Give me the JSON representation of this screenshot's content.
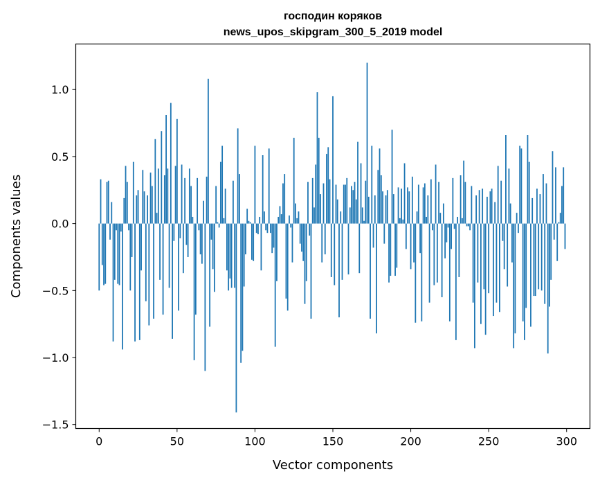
{
  "chart_data": {
    "type": "bar",
    "title": "господин коряков",
    "subtitle": "news_upos_skipgram_300_5_2019 model",
    "xlabel": "Vector components",
    "ylabel": "Components values",
    "xlim": [
      -15,
      315
    ],
    "ylim": [
      -1.53,
      1.34
    ],
    "x_ticks": [
      0,
      50,
      100,
      150,
      200,
      250,
      300
    ],
    "x_tick_labels": [
      "0",
      "50",
      "100",
      "150",
      "200",
      "250",
      "300"
    ],
    "y_ticks": [
      -1.5,
      -1.0,
      -0.5,
      0.0,
      0.5,
      1.0
    ],
    "y_tick_labels": [
      "−1.5",
      "−1.0",
      "−0.5",
      "0.0",
      "0.5",
      "1.0"
    ],
    "grid": false,
    "bar_color": "#1f77b4",
    "values": [
      -0.5,
      0.33,
      -0.31,
      -0.46,
      -0.45,
      0.31,
      0.32,
      -0.12,
      0.16,
      -0.88,
      -0.42,
      -0.05,
      -0.45,
      -0.46,
      -0.06,
      -0.94,
      0.19,
      0.43,
      0.31,
      -0.05,
      -0.5,
      -0.25,
      0.46,
      -0.88,
      0.21,
      0.25,
      -0.87,
      -0.35,
      0.4,
      0.24,
      -0.58,
      0.21,
      -0.76,
      0.38,
      0.28,
      -0.71,
      0.63,
      0.08,
      0.41,
      -0.42,
      0.69,
      -0.68,
      0.36,
      0.81,
      0.41,
      -0.48,
      0.9,
      -0.86,
      -0.13,
      0.43,
      0.78,
      -0.65,
      -0.11,
      0.44,
      -0.37,
      0.34,
      -0.16,
      -0.25,
      0.41,
      0.28,
      0.05,
      -1.02,
      -0.68,
      0.34,
      -0.05,
      -0.23,
      -0.3,
      0.17,
      -1.1,
      0.35,
      1.08,
      -0.77,
      -0.12,
      -0.34,
      -0.51,
      0.28,
      0.01,
      -0.03,
      0.46,
      0.58,
      0.04,
      0.26,
      -0.35,
      -0.5,
      -0.41,
      -0.48,
      0.32,
      -0.48,
      -1.41,
      0.71,
      0.37,
      -1.04,
      -0.95,
      -0.47,
      -0.23,
      0.11,
      0.02,
      0.01,
      -0.27,
      -0.28,
      0.58,
      -0.07,
      -0.08,
      0.05,
      -0.35,
      0.51,
      0.09,
      -0.05,
      -0.07,
      0.56,
      -0.07,
      -0.22,
      -0.18,
      -0.92,
      -0.43,
      0.05,
      0.13,
      0.07,
      0.3,
      0.37,
      -0.56,
      -0.65,
      0.06,
      -0.03,
      -0.29,
      0.64,
      0.15,
      0.04,
      0.09,
      -0.15,
      -0.21,
      -0.28,
      -0.6,
      -0.43,
      0.31,
      -0.09,
      -0.71,
      0.34,
      0.12,
      0.44,
      0.98,
      0.64,
      0.22,
      -0.29,
      0.3,
      -0.23,
      0.52,
      0.57,
      0.33,
      -0.4,
      0.95,
      -0.46,
      0.29,
      0.18,
      -0.7,
      0.09,
      -0.42,
      0.29,
      0.29,
      0.34,
      -0.38,
      0.12,
      0.28,
      0.25,
      0.31,
      0.18,
      0.61,
      -0.37,
      0.45,
      0.12,
      0.02,
      0.32,
      1.2,
      0.2,
      -0.71,
      0.58,
      -0.18,
      0.21,
      -0.82,
      0.4,
      0.56,
      0.36,
      0.24,
      -0.15,
      0.21,
      0.25,
      -0.44,
      -0.39,
      0.7,
      0.22,
      -0.39,
      -0.33,
      0.27,
      0.04,
      0.26,
      0.03,
      0.45,
      -0.19,
      0.27,
      0.24,
      -0.34,
      0.35,
      -0.29,
      -0.74,
      0.09,
      0.29,
      -0.22,
      -0.73,
      0.27,
      0.3,
      0.05,
      0.21,
      -0.59,
      0.33,
      -0.05,
      -0.46,
      0.44,
      -0.44,
      0.31,
      0.08,
      -0.55,
      0.15,
      -0.26,
      -0.14,
      -0.03,
      -0.73,
      -0.19,
      0.34,
      -0.04,
      -0.87,
      0.05,
      -0.4,
      0.36,
      0.04,
      0.47,
      0.31,
      -0.02,
      -0.02,
      -0.05,
      0.28,
      -0.59,
      -0.93,
      0.21,
      -0.44,
      0.25,
      -0.75,
      0.26,
      -0.49,
      -0.83,
      0.2,
      -0.52,
      0.24,
      0.26,
      -0.69,
      0.16,
      -0.59,
      0.43,
      -0.66,
      0.32,
      -0.13,
      -0.34,
      0.66,
      -0.47,
      0.41,
      0.15,
      -0.29,
      -0.93,
      -0.82,
      0.08,
      -0.07,
      0.58,
      0.56,
      -0.73,
      -0.87,
      -0.63,
      0.66,
      0.46,
      -0.77,
      0.19,
      -0.54,
      -0.54,
      0.26,
      -0.49,
      0.22,
      -0.5,
      0.37,
      -0.6,
      0.3,
      -0.97,
      -0.62,
      -0.42,
      0.54,
      -0.12,
      0.42,
      -0.28,
      0.01,
      0.08,
      0.28,
      0.42,
      -0.19
    ]
  }
}
